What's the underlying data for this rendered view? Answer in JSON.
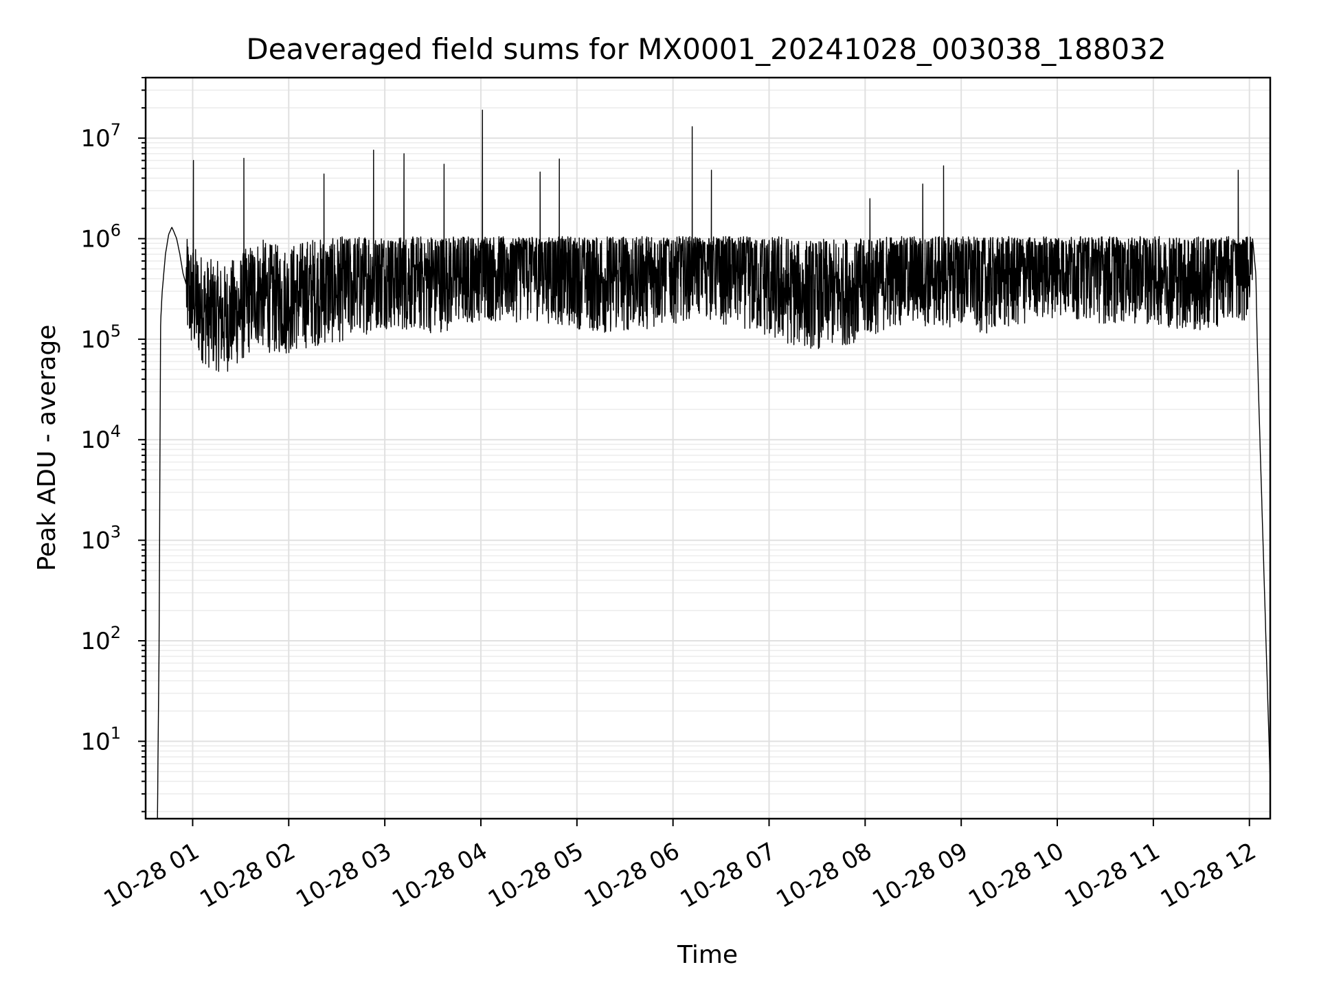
{
  "chart_data": {
    "type": "line",
    "title": "Deaveraged field sums for MX0001_20241028_003038_188032",
    "xlabel": "Time",
    "ylabel": "Peak ADU - average",
    "yscale": "log",
    "ylim": [
      1.7,
      40000000
    ],
    "xlim": [
      "2024-10-28 00:30:38",
      "2024-10-28 12:13:00"
    ],
    "grid": true,
    "x_ticks": [
      "10-28 01",
      "10-28 02",
      "10-28 03",
      "10-28 04",
      "10-28 05",
      "10-28 06",
      "10-28 07",
      "10-28 08",
      "10-28 09",
      "10-28 10",
      "10-28 11",
      "10-28 12"
    ],
    "y_ticks": [
      {
        "base": "10",
        "exp": "1"
      },
      {
        "base": "10",
        "exp": "2"
      },
      {
        "base": "10",
        "exp": "3"
      },
      {
        "base": "10",
        "exp": "4"
      },
      {
        "base": "10",
        "exp": "5"
      },
      {
        "base": "10",
        "exp": "6"
      },
      {
        "base": "10",
        "exp": "7"
      }
    ],
    "series": [
      {
        "color": "#000000",
        "x": [
          "2024-10-28 00:38:00",
          "2024-10-28 00:39:00",
          "2024-10-28 00:40:00",
          "2024-10-28 00:41:00",
          "2024-10-28 00:43:00",
          "2024-10-28 00:45:00",
          "2024-10-28 00:47:00",
          "2024-10-28 00:48:00",
          "2024-10-28 00:50:00",
          "2024-10-28 00:52:00",
          "2024-10-28 00:54:00",
          "2024-10-28 00:56:00",
          "2024-10-28 00:58:00",
          "2024-10-28 01:00:00",
          "2024-10-28 01:10:00",
          "2024-10-28 01:20:00",
          "2024-10-28 01:30:00",
          "2024-10-28 01:40:00",
          "2024-10-28 01:50:00",
          "2024-10-28 02:00:00",
          "2024-10-28 02:15:00",
          "2024-10-28 02:30:00",
          "2024-10-28 02:45:00",
          "2024-10-28 03:00:00",
          "2024-10-28 03:15:00",
          "2024-10-28 03:30:00",
          "2024-10-28 03:45:00",
          "2024-10-28 04:00:00",
          "2024-10-28 04:15:00",
          "2024-10-28 04:30:00",
          "2024-10-28 04:45:00",
          "2024-10-28 05:00:00",
          "2024-10-28 05:15:00",
          "2024-10-28 05:30:00",
          "2024-10-28 05:45:00",
          "2024-10-28 06:00:00",
          "2024-10-28 06:15:00",
          "2024-10-28 06:30:00",
          "2024-10-28 06:45:00",
          "2024-10-28 07:00:00",
          "2024-10-28 07:15:00",
          "2024-10-28 07:30:00",
          "2024-10-28 07:45:00",
          "2024-10-28 08:00:00",
          "2024-10-28 08:15:00",
          "2024-10-28 08:30:00",
          "2024-10-28 08:45:00",
          "2024-10-28 09:00:00",
          "2024-10-28 09:15:00",
          "2024-10-28 09:30:00",
          "2024-10-28 09:45:00",
          "2024-10-28 10:00:00",
          "2024-10-28 10:15:00",
          "2024-10-28 10:30:00",
          "2024-10-28 10:45:00",
          "2024-10-28 11:00:00",
          "2024-10-28 11:15:00",
          "2024-10-28 11:30:00",
          "2024-10-28 11:45:00",
          "2024-10-28 11:58:00",
          "2024-10-28 12:02:00",
          "2024-10-28 12:04:00",
          "2024-10-28 12:05:00",
          "2024-10-28 12:06:00",
          "2024-10-28 12:13:00"
        ],
        "y": [
          1.7,
          80,
          150000,
          300000,
          700000,
          1100000,
          1300000,
          1200000,
          1000000,
          700000,
          450000,
          350000,
          280000,
          250000,
          180000,
          160000,
          200000,
          300000,
          250000,
          250000,
          300000,
          320000,
          380000,
          450000,
          420000,
          400000,
          450000,
          550000,
          500000,
          550000,
          500000,
          450000,
          400000,
          420000,
          450000,
          500000,
          600000,
          500000,
          450000,
          350000,
          300000,
          280000,
          300000,
          350000,
          450000,
          500000,
          450000,
          480000,
          400000,
          450000,
          500000,
          600000,
          550000,
          500000,
          500000,
          500000,
          450000,
          400000,
          500000,
          550000,
          1000000,
          450000,
          80000,
          20000,
          4
        ]
      }
    ],
    "spikes": [
      {
        "x": "2024-10-28 01:00:30",
        "y": 6000000
      },
      {
        "x": "2024-10-28 01:32:00",
        "y": 6300000
      },
      {
        "x": "2024-10-28 02:22:00",
        "y": 4400000
      },
      {
        "x": "2024-10-28 02:53:00",
        "y": 7600000
      },
      {
        "x": "2024-10-28 03:12:00",
        "y": 7000000
      },
      {
        "x": "2024-10-28 03:37:00",
        "y": 5500000
      },
      {
        "x": "2024-10-28 04:01:00",
        "y": 19000000
      },
      {
        "x": "2024-10-28 04:37:00",
        "y": 4600000
      },
      {
        "x": "2024-10-28 04:49:00",
        "y": 6200000
      },
      {
        "x": "2024-10-28 06:12:00",
        "y": 13000000
      },
      {
        "x": "2024-10-28 06:24:00",
        "y": 4800000
      },
      {
        "x": "2024-10-28 08:03:00",
        "y": 2500000
      },
      {
        "x": "2024-10-28 08:36:00",
        "y": 3500000
      },
      {
        "x": "2024-10-28 08:49:00",
        "y": 5300000
      },
      {
        "x": "2024-10-28 11:53:00",
        "y": 4800000
      }
    ]
  }
}
